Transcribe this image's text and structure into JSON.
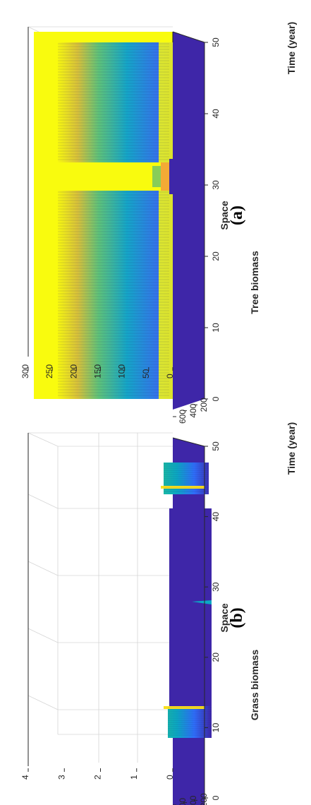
{
  "chart_data": [
    {
      "type": "surface",
      "panel_label": "(a)",
      "xlabel": "Space",
      "ylabel": "Time (year)",
      "zlabel": "Tree biomass",
      "x_ticks": [
        0,
        10,
        20,
        30,
        40,
        50
      ],
      "y_ticks": [
        200,
        400,
        600
      ],
      "y_tick_labels": [
        "200",
        "400",
        "600"
      ],
      "z_ticks": [
        0,
        50,
        100,
        150,
        200,
        250,
        300
      ],
      "x_range": [
        0,
        50
      ],
      "y_range": [
        0,
        600
      ],
      "z_range": [
        0,
        300
      ],
      "colormap": [
        "#3e26a8",
        "#4743f8",
        "#2f6efa",
        "#1990e0",
        "#0ba8c4",
        "#1bbba2",
        "#62c372",
        "#b4bd3d",
        "#f2bd33",
        "#f9e01e",
        "#f9fb0e"
      ],
      "surface": {
        "plateau_value": 270,
        "gap_center_space": 24.5,
        "gap_value": 0,
        "description_values": {
          "space": [
            0,
            10,
            20,
            23,
            24.5,
            26,
            30,
            40,
            50
          ],
          "final_biomass": [
            270,
            270,
            270,
            270,
            0,
            270,
            270,
            270,
            270
          ]
        }
      },
      "grid": true
    },
    {
      "type": "surface",
      "panel_label": "(b)",
      "xlabel": "Space",
      "ylabel": "Time (year)",
      "zlabel": "Grass biomass",
      "x_ticks": [
        0,
        10,
        20,
        30,
        40,
        50
      ],
      "y_ticks": [
        200,
        400,
        600
      ],
      "y_tick_labels": [
        "200",
        "400",
        "600"
      ],
      "z_ticks": [
        0,
        1,
        2,
        3,
        4
      ],
      "x_range": [
        0,
        50
      ],
      "y_range": [
        0,
        600
      ],
      "z_range": [
        0,
        4
      ],
      "colormap": [
        "#3e26a8",
        "#4743f8",
        "#2f6efa",
        "#1990e0",
        "#0ba8c4",
        "#1bbba2",
        "#62c372",
        "#b4bd3d",
        "#f2bd33",
        "#f9e01e",
        "#f9fb0e"
      ],
      "surface": {
        "bands": [
          {
            "space_start": 0,
            "space_end": 8,
            "height": 1.9,
            "spike_space": 9,
            "spike_height": 2.6
          },
          {
            "space_start": 36,
            "space_end": 44,
            "height": 2.4,
            "spike_space": 40,
            "spike_height": 2.6
          }
        ],
        "small_spike": {
          "space": 24.5,
          "height": 0.8
        }
      },
      "grid": true
    }
  ]
}
